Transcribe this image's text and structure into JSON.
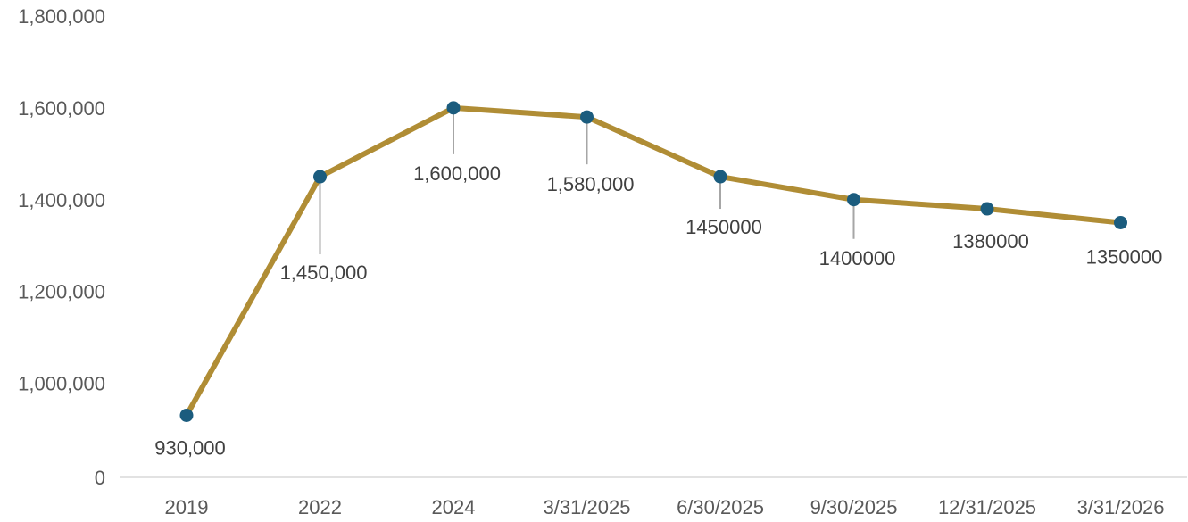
{
  "chart_data": {
    "type": "line",
    "title": "",
    "xlabel": "",
    "ylabel": "",
    "categories": [
      "2019",
      "2022",
      "2024",
      "3/31/2025",
      "6/30/2025",
      "9/30/2025",
      "12/31/2025",
      "3/31/2026"
    ],
    "series": [
      {
        "values": [
          930000,
          1450000,
          1600000,
          1580000,
          1450000,
          1400000,
          1380000,
          1350000
        ],
        "data_labels": [
          "930,000",
          "1,450,000",
          "1,600,000",
          "1,580,000",
          "1450000",
          "1400000",
          "1380000",
          "1350000"
        ],
        "line_color": "#B08D35",
        "marker_color": "#1B5C7E"
      }
    ],
    "y_ticks": [
      0,
      1000000,
      1200000,
      1400000,
      1600000,
      1800000
    ],
    "y_tick_labels": [
      "0",
      "1,000,000",
      "1,200,000",
      "1,400,000",
      "1,600,000",
      "1,800,000"
    ],
    "ylim": [
      0,
      1800000
    ],
    "grid": false,
    "legend": "none",
    "leader_line_color": "#A6A6A6",
    "axis_color": "#D9D9D9"
  }
}
